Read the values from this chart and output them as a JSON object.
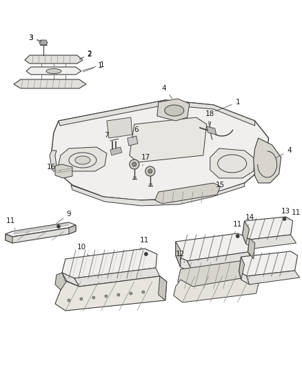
{
  "bg_color": "#ffffff",
  "fig_width": 4.38,
  "fig_height": 5.33,
  "dpi": 100,
  "line_color": "#3a3a3a",
  "light_fill": "#f0efed",
  "mid_fill": "#e2e0dc",
  "dark_fill": "#c8c5be",
  "text_color": "#1a1a1a",
  "font_size": 7.5
}
